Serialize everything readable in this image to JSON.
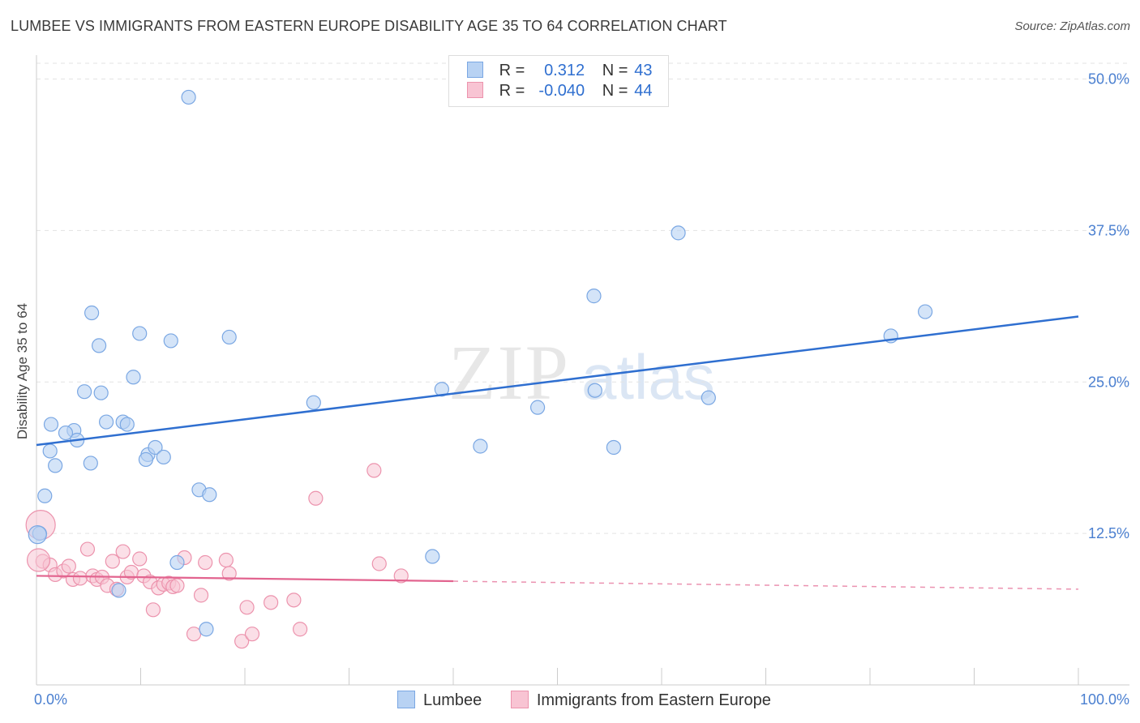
{
  "header": {
    "title": "LUMBEE VS IMMIGRANTS FROM EASTERN EUROPE DISABILITY AGE 35 TO 64 CORRELATION CHART",
    "source": "Source: ZipAtlas.com"
  },
  "legend": {
    "rows": [
      {
        "r_label": "R =",
        "r_value": "0.312",
        "n_label": "N =",
        "n_value": "43"
      },
      {
        "r_label": "R =",
        "r_value": "-0.040",
        "n_label": "N =",
        "n_value": "44"
      }
    ]
  },
  "bottom_legend": {
    "items": [
      "Lumbee",
      "Immigrants from Eastern Europe"
    ]
  },
  "watermark": {
    "zip": "ZIP",
    "atlas": "atlas"
  },
  "colors": {
    "blue_fill": "#b8d2f3",
    "blue_stroke": "#7aa7e3",
    "blue_line": "#2f6fd0",
    "pink_fill": "#f8c4d3",
    "pink_stroke": "#ec93ad",
    "pink_line": "#e2648f",
    "tick_text": "#4a7fd0"
  },
  "chart_data": {
    "type": "scatter",
    "title": "LUMBEE VS IMMIGRANTS FROM EASTERN EUROPE DISABILITY AGE 35 TO 64 CORRELATION CHART",
    "xlabel": "",
    "ylabel": "Disability Age 35 to 64",
    "xlim": [
      0,
      100
    ],
    "ylim": [
      0,
      52
    ],
    "x_tick_labels": [
      "0.0%",
      "100.0%"
    ],
    "y_ticks": [
      12.5,
      25.0,
      37.5,
      50.0
    ],
    "y_tick_labels": [
      "12.5%",
      "25.0%",
      "37.5%",
      "50.0%"
    ],
    "grid": "horizontal dashed",
    "legend_position": "top-center",
    "series": [
      {
        "name": "Lumbee",
        "r": 0.312,
        "n": 43,
        "trend": {
          "x": [
            0,
            100
          ],
          "y": [
            19.8,
            30.4
          ],
          "solid_to": 100
        },
        "points": [
          [
            14.6,
            48.5
          ],
          [
            5.3,
            30.7
          ],
          [
            9.9,
            29.0
          ],
          [
            6.0,
            28.0
          ],
          [
            12.9,
            28.4
          ],
          [
            18.5,
            28.7
          ],
          [
            9.3,
            25.4
          ],
          [
            4.6,
            24.2
          ],
          [
            6.2,
            24.1
          ],
          [
            1.4,
            21.5
          ],
          [
            3.6,
            21.0
          ],
          [
            2.8,
            20.8
          ],
          [
            3.9,
            20.2
          ],
          [
            6.7,
            21.7
          ],
          [
            8.3,
            21.7
          ],
          [
            8.7,
            21.5
          ],
          [
            1.3,
            19.3
          ],
          [
            10.7,
            19.0
          ],
          [
            10.5,
            18.6
          ],
          [
            11.4,
            19.6
          ],
          [
            12.2,
            18.8
          ],
          [
            5.2,
            18.3
          ],
          [
            1.8,
            18.1
          ],
          [
            15.6,
            16.1
          ],
          [
            16.6,
            15.7
          ],
          [
            0.8,
            15.6
          ],
          [
            0.3,
            12.5
          ],
          [
            7.9,
            7.8
          ],
          [
            13.5,
            10.1
          ],
          [
            16.3,
            4.6
          ],
          [
            26.6,
            23.3
          ],
          [
            38.9,
            24.4
          ],
          [
            42.6,
            19.7
          ],
          [
            48.1,
            22.9
          ],
          [
            53.5,
            32.1
          ],
          [
            53.6,
            24.3
          ],
          [
            55.4,
            19.6
          ],
          [
            61.6,
            37.3
          ],
          [
            64.5,
            23.7
          ],
          [
            82.0,
            28.8
          ],
          [
            85.3,
            30.8
          ],
          [
            38.0,
            10.6
          ],
          [
            0.1,
            12.4
          ]
        ]
      },
      {
        "name": "Immigrants from Eastern Europe",
        "r": -0.04,
        "n": 44,
        "trend": {
          "x": [
            0,
            100
          ],
          "y": [
            9.0,
            7.9
          ],
          "solid_to": 40
        },
        "points": [
          [
            0.4,
            13.2
          ],
          [
            0.6,
            10.2
          ],
          [
            1.3,
            9.9
          ],
          [
            1.8,
            9.1
          ],
          [
            2.6,
            9.4
          ],
          [
            3.1,
            9.8
          ],
          [
            3.5,
            8.7
          ],
          [
            4.2,
            8.8
          ],
          [
            4.9,
            11.2
          ],
          [
            5.4,
            9.0
          ],
          [
            5.8,
            8.7
          ],
          [
            6.3,
            8.9
          ],
          [
            6.8,
            8.2
          ],
          [
            7.3,
            10.2
          ],
          [
            7.7,
            7.9
          ],
          [
            8.3,
            11.0
          ],
          [
            8.7,
            8.9
          ],
          [
            9.1,
            9.3
          ],
          [
            9.9,
            10.4
          ],
          [
            10.3,
            9.0
          ],
          [
            10.9,
            8.5
          ],
          [
            11.2,
            6.2
          ],
          [
            11.7,
            8.0
          ],
          [
            12.2,
            8.3
          ],
          [
            12.7,
            8.4
          ],
          [
            13.1,
            8.1
          ],
          [
            13.5,
            8.2
          ],
          [
            14.2,
            10.5
          ],
          [
            15.1,
            4.2
          ],
          [
            15.8,
            7.4
          ],
          [
            16.2,
            10.1
          ],
          [
            18.2,
            10.3
          ],
          [
            18.5,
            9.2
          ],
          [
            19.7,
            3.6
          ],
          [
            20.2,
            6.4
          ],
          [
            20.7,
            4.2
          ],
          [
            22.5,
            6.8
          ],
          [
            24.7,
            7.0
          ],
          [
            25.3,
            4.6
          ],
          [
            26.8,
            15.4
          ],
          [
            32.4,
            17.7
          ],
          [
            32.9,
            10.0
          ],
          [
            35.0,
            9.0
          ],
          [
            0.2,
            10.3
          ]
        ]
      }
    ]
  }
}
